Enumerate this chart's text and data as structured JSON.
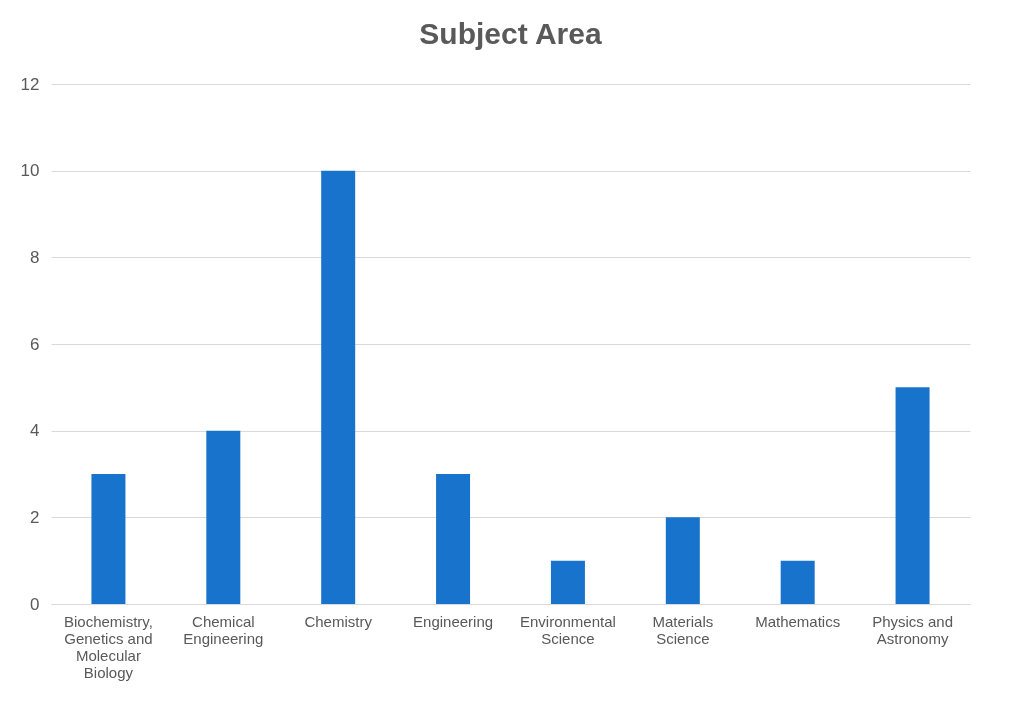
{
  "chart_data": {
    "type": "bar",
    "title": "Subject Area",
    "categories": [
      "Biochemistry, Genetics and Molecular Biology",
      "Chemical Engineering",
      "Chemistry",
      "Engineering",
      "Environmental Science",
      "Materials Science",
      "Mathematics",
      "Physics and Astronomy"
    ],
    "values": [
      3,
      4,
      10,
      3,
      1,
      2,
      1,
      5
    ],
    "color": "#1873cc",
    "ylim": [
      0,
      12
    ],
    "yticks": [
      0,
      2,
      4,
      6,
      8,
      10,
      12
    ],
    "grid": "y"
  }
}
